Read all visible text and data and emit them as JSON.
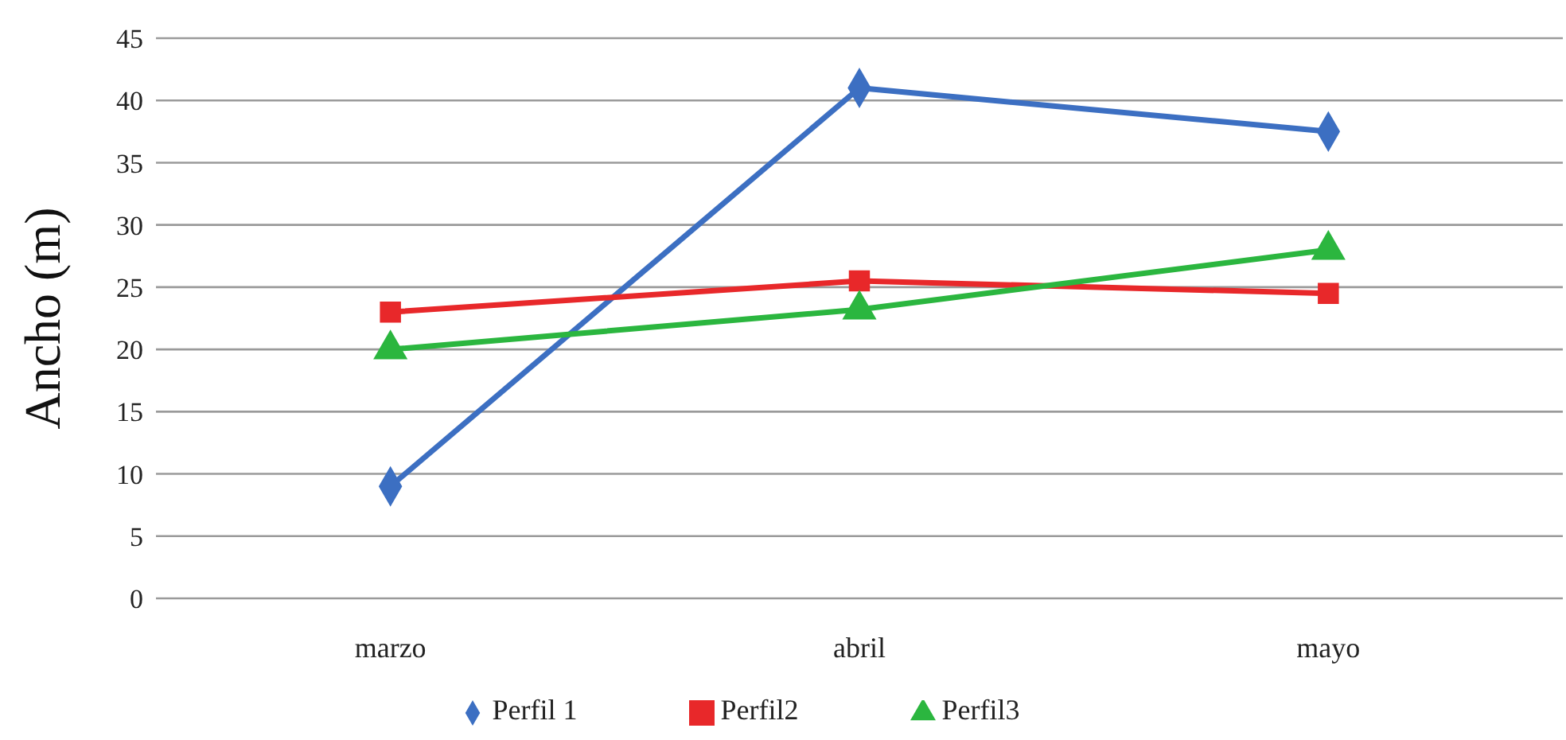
{
  "chart_data": {
    "type": "line",
    "ylabel": "Ancho (m)",
    "categories": [
      "marzo",
      "abril",
      "mayo"
    ],
    "series": [
      {
        "name": "Perfil 1",
        "color": "#3c6fc2",
        "values": [
          9,
          41,
          37.5
        ],
        "marker": "diamond"
      },
      {
        "name": "Perfil2",
        "color": "#e8282a",
        "values": [
          23,
          25.5,
          24.5
        ],
        "marker": "square"
      },
      {
        "name": "Perfil3",
        "color": "#2bb63f",
        "values": [
          20,
          23.2,
          28
        ],
        "marker": "triangle"
      }
    ],
    "ylim": [
      0,
      45
    ],
    "yticks": [
      0,
      5,
      10,
      15,
      20,
      25,
      30,
      35,
      40,
      45
    ],
    "grid": "y",
    "legend": "bottom",
    "line_style": "solid"
  }
}
